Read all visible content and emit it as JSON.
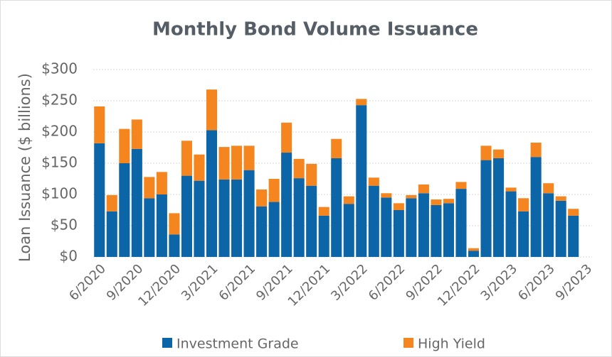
{
  "chart_data": {
    "type": "bar",
    "stacked": true,
    "title": "Monthly Bond Volume Issuance",
    "y_label": "Loan Issuance ($ billions)",
    "categories": [
      "6/2020",
      null,
      null,
      "9/2020",
      null,
      null,
      "12/2020",
      null,
      null,
      "3/2021",
      null,
      null,
      "6/2021",
      null,
      null,
      "9/2021",
      null,
      null,
      "12/2021",
      null,
      null,
      "3/2022",
      null,
      null,
      "6/2022",
      null,
      null,
      "9/2022",
      null,
      null,
      "12/2022",
      null,
      null,
      "3/2023",
      null,
      null,
      "6/2023",
      null,
      null,
      "9/2023"
    ],
    "series": [
      {
        "name": "Investment Grade",
        "color": "#0b65a7",
        "values": [
          182,
          73,
          150,
          173,
          94,
          100,
          36,
          130,
          122,
          203,
          124,
          124,
          139,
          81,
          88,
          167,
          126,
          114,
          66,
          158,
          85,
          243,
          114,
          95,
          75,
          94,
          102,
          83,
          86,
          109,
          10,
          155,
          158,
          105,
          73,
          160,
          102,
          90,
          66,
          null
        ]
      },
      {
        "name": "High Yield",
        "color": "#f5861f",
        "values": [
          59,
          26,
          55,
          47,
          34,
          36,
          34,
          56,
          42,
          65,
          52,
          54,
          39,
          27,
          37,
          48,
          31,
          35,
          14,
          31,
          12,
          10,
          13,
          7,
          11,
          5,
          14,
          9,
          7,
          11,
          4,
          23,
          14,
          6,
          21,
          23,
          16,
          7,
          11,
          null
        ]
      }
    ],
    "ylim": [
      0,
      300
    ],
    "yticks": [
      {
        "value": 0,
        "label": "$0"
      },
      {
        "value": 50,
        "label": "$50"
      },
      {
        "value": 100,
        "label": "$100"
      },
      {
        "value": 150,
        "label": "$150"
      },
      {
        "value": 200,
        "label": "$200"
      },
      {
        "value": 250,
        "label": "$250"
      },
      {
        "value": 300,
        "label": "$300"
      }
    ],
    "grid": true,
    "legend": "bottom"
  }
}
